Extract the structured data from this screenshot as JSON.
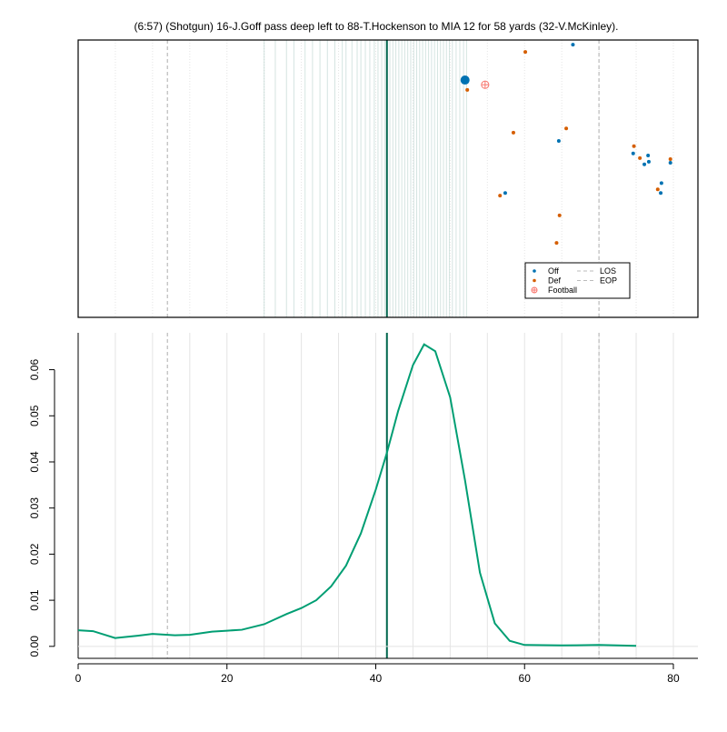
{
  "chart_data": [
    {
      "type": "scatter",
      "title": "(6:57) (Shotgun) 16-J.Goff pass deep left to 88-T.Hockenson to MIA 12 for 58 yards (32-V.McKinley).",
      "xlim": [
        0,
        83.3
      ],
      "ylim": [
        0,
        53.3
      ],
      "minor_xticks": [
        5,
        10,
        15,
        20,
        25,
        30,
        35,
        40,
        45,
        50,
        55,
        60,
        65,
        70,
        75,
        80
      ],
      "rug": [
        25,
        26.5,
        28,
        29,
        30.5,
        31.5,
        32.5,
        33.5,
        34.5,
        35.5,
        36,
        36.8,
        37.5,
        38,
        38.6,
        39.2,
        39.8,
        40.3,
        40.8,
        41.2,
        41.9,
        42.3,
        42.7,
        43.1,
        43.5,
        43.9,
        44.3,
        44.7,
        45.1,
        45.5,
        45.9,
        46.3,
        46.7,
        47.1,
        47.5,
        47.9,
        48.3,
        48.7,
        49.1,
        49.5,
        49.9,
        50.3,
        50.8,
        51.3,
        51.8,
        52.2
      ],
      "rug_color": "#9fc4bd",
      "reference_lines": [
        {
          "name": "LOS",
          "x": 12
        },
        {
          "name": "EOP",
          "x": 70
        }
      ],
      "reference_color": "#bbbbbb",
      "marker_x": 41.5,
      "marker_color": "#00664d",
      "legend": "bottom-right",
      "series": [
        {
          "name": "Off",
          "color": "#0072B2",
          "shape": "dot",
          "x": [
            66.5,
            52.0,
            64.6,
            57.4,
            74.6,
            76.6,
            76.1,
            76.7,
            79.6,
            78.4,
            78.3
          ],
          "values": [
            52.4,
            45.6,
            33.9,
            23.9,
            31.5,
            31.1,
            29.4,
            29.9,
            29.7,
            25.8,
            23.9
          ],
          "sizes": [
            1,
            2.5,
            1,
            1,
            1,
            1,
            1,
            1,
            1,
            1,
            1
          ]
        },
        {
          "name": "Def",
          "color": "#D55E00",
          "shape": "dot",
          "x": [
            60.1,
            52.3,
            58.5,
            65.6,
            74.7,
            75.5,
            79.6,
            77.9,
            56.7,
            64.7,
            64.3
          ],
          "values": [
            51.0,
            43.7,
            35.5,
            36.3,
            32.9,
            30.6,
            30.4,
            24.6,
            23.4,
            19.6,
            14.3
          ],
          "sizes": [
            1,
            1,
            1,
            1,
            1,
            1,
            1,
            1,
            1,
            1,
            1
          ]
        },
        {
          "name": "Football",
          "color": "#F8766D",
          "shape": "crossed",
          "x": [
            54.7
          ],
          "values": [
            44.7
          ],
          "sizes": [
            1.5
          ]
        }
      ]
    },
    {
      "type": "line",
      "xlim": [
        0,
        83.3
      ],
      "ylim": [
        -0.0026,
        0.068
      ],
      "xticks": [
        0,
        20,
        40,
        60,
        80
      ],
      "yticks": [
        {
          "value": 0,
          "label": "0.00"
        },
        {
          "value": 0.01,
          "label": "0.01"
        },
        {
          "value": 0.02,
          "label": "0.02"
        },
        {
          "value": 0.03,
          "label": "0.03"
        },
        {
          "value": 0.04,
          "label": "0.04"
        },
        {
          "value": 0.05,
          "label": "0.05"
        },
        {
          "value": 0.06,
          "label": "0.06"
        }
      ],
      "minor_xticks": [
        5,
        10,
        15,
        20,
        25,
        30,
        35,
        40,
        45,
        50,
        55,
        60,
        65,
        70,
        75,
        80
      ],
      "reference_lines": [
        {
          "name": "LOS",
          "x": 12
        },
        {
          "name": "EOP",
          "x": 70
        }
      ],
      "reference_color": "#bbbbbb",
      "marker_x": 41.5,
      "marker_color": "#00664d",
      "series": [
        {
          "color": "#009E73",
          "x": [
            0,
            2,
            5,
            8,
            10,
            13,
            15,
            18,
            20,
            22,
            25,
            28,
            30,
            32,
            34,
            36,
            38,
            40,
            41.5,
            43,
            45,
            46.5,
            48,
            50,
            52,
            54,
            56,
            58,
            60,
            65,
            70,
            75
          ],
          "values": [
            0.0035,
            0.0033,
            0.0018,
            0.0023,
            0.0027,
            0.0024,
            0.0025,
            0.0032,
            0.0034,
            0.0036,
            0.0048,
            0.007,
            0.0083,
            0.01,
            0.013,
            0.0175,
            0.0245,
            0.034,
            0.042,
            0.051,
            0.061,
            0.0655,
            0.064,
            0.054,
            0.036,
            0.016,
            0.005,
            0.0012,
            0.0003,
            0.0002,
            0.0003,
            0.0001
          ]
        }
      ]
    }
  ]
}
